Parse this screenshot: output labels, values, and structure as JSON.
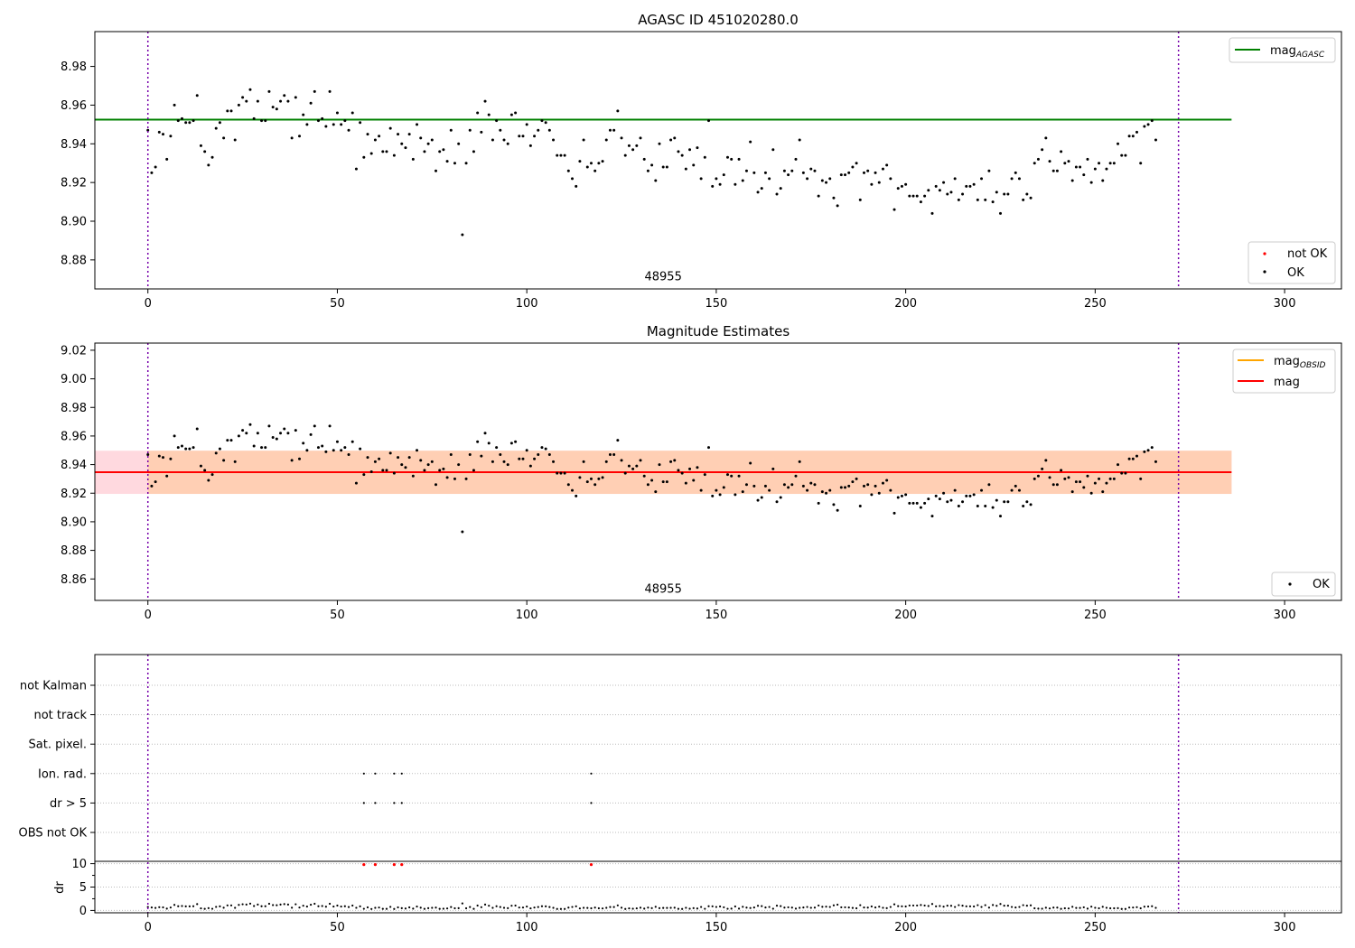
{
  "colors": {
    "agasc_line": "#008000",
    "obsid_line": "#ffa500",
    "mean_line": "#ff0000",
    "band_obsid": "#ffcfb4",
    "band_mean": "#ffd9df",
    "ok_point": "#000000",
    "notok_point": "#ff0000",
    "obs_boundary": "#7700aa",
    "grid": "#bbbbbb"
  },
  "chart_data": [
    {
      "type": "scatter",
      "title": "AGASC ID 451020280.0",
      "xlim": [
        -14,
        315
      ],
      "ylim": [
        8.865,
        8.998
      ],
      "xticks": [
        0,
        50,
        100,
        150,
        200,
        250,
        300
      ],
      "yticks": [
        8.88,
        8.9,
        8.92,
        8.94,
        8.96,
        8.98
      ],
      "ytick_labels": [
        "8.88",
        "8.90",
        "8.92",
        "8.94",
        "8.96",
        "8.98"
      ],
      "reference_lines": [
        {
          "name": "mag_AGASC",
          "legend_base": "mag",
          "legend_sub": "AGASC",
          "y": 8.9525,
          "x_range": [
            -14,
            286
          ],
          "color": "agasc_line"
        }
      ],
      "obs_boundaries": [
        0,
        272
      ],
      "obsid_annotation": {
        "text": "48955",
        "x": 136,
        "y": 8.8695
      },
      "series_legend": [
        {
          "name": "not OK",
          "marker": "notok_point"
        },
        {
          "name": "OK",
          "marker": "ok_point"
        }
      ],
      "legend_placement": [
        "top-right",
        "bottom-right"
      ]
    },
    {
      "type": "scatter",
      "title": "Magnitude Estimates",
      "xlim": [
        -14,
        315
      ],
      "ylim": [
        8.845,
        9.025
      ],
      "xticks": [
        0,
        50,
        100,
        150,
        200,
        250,
        300
      ],
      "yticks": [
        8.86,
        8.88,
        8.9,
        8.92,
        8.94,
        8.96,
        8.98,
        9.0,
        9.02
      ],
      "ytick_labels": [
        "8.86",
        "8.88",
        "8.90",
        "8.92",
        "8.94",
        "8.96",
        "8.98",
        "9.00",
        "9.02"
      ],
      "reference_lines": [
        {
          "name": "mag_OBSID",
          "legend_base": "mag",
          "legend_sub": "OBSID",
          "y": 8.9347,
          "x_range": [
            0,
            272
          ],
          "color": "obsid_line"
        },
        {
          "name": "mag",
          "legend_base": "mag",
          "legend_sub": "",
          "y": 8.9347,
          "x_range": [
            -14,
            286
          ],
          "color": "mean_line"
        }
      ],
      "bands": [
        {
          "y_range": [
            8.9195,
            8.9497
          ],
          "x_range": [
            -14,
            286
          ],
          "color": "band_mean"
        },
        {
          "y_range": [
            8.9195,
            8.9497
          ],
          "x_range": [
            0,
            286
          ],
          "color": "band_obsid"
        }
      ],
      "obs_boundaries": [
        0,
        272
      ],
      "obsid_annotation": {
        "text": "48955",
        "x": 136,
        "y": 8.8505
      },
      "series_legend": [
        {
          "name": "OK",
          "marker": "ok_point"
        }
      ],
      "legend_placement": [
        "top-right",
        "bottom-right"
      ]
    },
    {
      "type": "scatter",
      "title": "",
      "xlim": [
        -14,
        315
      ],
      "xticks": [
        0,
        50,
        100,
        150,
        200,
        250,
        300
      ],
      "flag_rows": [
        "not Kalman",
        "not track",
        "Sat. pixel.",
        "Ion. rad.",
        "dr > 5",
        "OBS not OK"
      ],
      "flag_points": {
        "Ion. rad.": [
          57,
          60,
          65,
          67,
          117
        ],
        "dr > 5": [
          57,
          60,
          65,
          67,
          117
        ]
      },
      "dr_ylabel": "dr",
      "dr_ylim": [
        -0.5,
        10.5
      ],
      "dr_yticks": [
        0,
        5,
        10
      ],
      "dr_ytick_labels": [
        "0",
        "5",
        "10"
      ],
      "dr_outliers": [
        {
          "x": 57,
          "y": 9.8
        },
        {
          "x": 60,
          "y": 9.8
        },
        {
          "x": 65,
          "y": 9.8
        },
        {
          "x": 67,
          "y": 9.8
        },
        {
          "x": 117,
          "y": 9.8
        }
      ],
      "obs_boundaries": [
        0,
        272
      ]
    }
  ],
  "mag_points": [
    [
      0,
      8.947
    ],
    [
      1,
      8.925
    ],
    [
      2,
      8.928
    ],
    [
      3,
      8.946
    ],
    [
      4,
      8.945
    ],
    [
      5,
      8.932
    ],
    [
      6,
      8.944
    ],
    [
      7,
      8.96
    ],
    [
      8,
      8.952
    ],
    [
      9,
      8.953
    ],
    [
      10,
      8.951
    ],
    [
      11,
      8.951
    ],
    [
      12,
      8.952
    ],
    [
      13,
      8.965
    ],
    [
      14,
      8.939
    ],
    [
      15,
      8.936
    ],
    [
      16,
      8.929
    ],
    [
      17,
      8.933
    ],
    [
      18,
      8.948
    ],
    [
      19,
      8.951
    ],
    [
      20,
      8.943
    ],
    [
      21,
      8.957
    ],
    [
      22,
      8.957
    ],
    [
      23,
      8.942
    ],
    [
      24,
      8.96
    ],
    [
      25,
      8.964
    ],
    [
      26,
      8.962
    ],
    [
      27,
      8.968
    ],
    [
      28,
      8.953
    ],
    [
      29,
      8.962
    ],
    [
      30,
      8.952
    ],
    [
      31,
      8.952
    ],
    [
      32,
      8.967
    ],
    [
      33,
      8.959
    ],
    [
      34,
      8.958
    ],
    [
      35,
      8.962
    ],
    [
      36,
      8.965
    ],
    [
      37,
      8.962
    ],
    [
      38,
      8.943
    ],
    [
      39,
      8.964
    ],
    [
      40,
      8.944
    ],
    [
      41,
      8.955
    ],
    [
      42,
      8.95
    ],
    [
      43,
      8.961
    ],
    [
      44,
      8.967
    ],
    [
      45,
      8.952
    ],
    [
      46,
      8.953
    ],
    [
      47,
      8.949
    ],
    [
      48,
      8.967
    ],
    [
      49,
      8.95
    ],
    [
      50,
      8.956
    ],
    [
      51,
      8.95
    ],
    [
      52,
      8.952
    ],
    [
      53,
      8.947
    ],
    [
      54,
      8.956
    ],
    [
      55,
      8.927
    ],
    [
      56,
      8.951
    ],
    [
      57,
      8.933
    ],
    [
      58,
      8.945
    ],
    [
      59,
      8.935
    ],
    [
      60,
      8.942
    ],
    [
      61,
      8.944
    ],
    [
      62,
      8.936
    ],
    [
      63,
      8.936
    ],
    [
      64,
      8.948
    ],
    [
      65,
      8.934
    ],
    [
      66,
      8.945
    ],
    [
      67,
      8.94
    ],
    [
      68,
      8.938
    ],
    [
      69,
      8.945
    ],
    [
      70,
      8.932
    ],
    [
      71,
      8.95
    ],
    [
      72,
      8.943
    ],
    [
      73,
      8.936
    ],
    [
      74,
      8.94
    ],
    [
      75,
      8.942
    ],
    [
      76,
      8.926
    ],
    [
      77,
      8.936
    ],
    [
      78,
      8.937
    ],
    [
      79,
      8.931
    ],
    [
      80,
      8.947
    ],
    [
      81,
      8.93
    ],
    [
      82,
      8.94
    ],
    [
      83,
      8.893
    ],
    [
      84,
      8.93
    ],
    [
      85,
      8.947
    ],
    [
      86,
      8.936
    ],
    [
      87,
      8.956
    ],
    [
      88,
      8.946
    ],
    [
      89,
      8.962
    ],
    [
      90,
      8.955
    ],
    [
      91,
      8.942
    ],
    [
      92,
      8.952
    ],
    [
      93,
      8.947
    ],
    [
      94,
      8.942
    ],
    [
      95,
      8.94
    ],
    [
      96,
      8.955
    ],
    [
      97,
      8.956
    ],
    [
      98,
      8.944
    ],
    [
      99,
      8.944
    ],
    [
      100,
      8.95
    ],
    [
      101,
      8.939
    ],
    [
      102,
      8.944
    ],
    [
      103,
      8.947
    ],
    [
      104,
      8.952
    ],
    [
      105,
      8.951
    ],
    [
      106,
      8.947
    ],
    [
      107,
      8.942
    ],
    [
      108,
      8.934
    ],
    [
      109,
      8.934
    ],
    [
      110,
      8.934
    ],
    [
      111,
      8.926
    ],
    [
      112,
      8.922
    ],
    [
      113,
      8.918
    ],
    [
      114,
      8.931
    ],
    [
      115,
      8.942
    ],
    [
      116,
      8.928
    ],
    [
      117,
      8.93
    ],
    [
      118,
      8.926
    ],
    [
      119,
      8.93
    ],
    [
      120,
      8.931
    ],
    [
      121,
      8.942
    ],
    [
      122,
      8.947
    ],
    [
      123,
      8.947
    ],
    [
      124,
      8.957
    ],
    [
      125,
      8.943
    ],
    [
      126,
      8.934
    ],
    [
      127,
      8.939
    ],
    [
      128,
      8.937
    ],
    [
      129,
      8.939
    ],
    [
      130,
      8.943
    ],
    [
      131,
      8.932
    ],
    [
      132,
      8.926
    ],
    [
      133,
      8.929
    ],
    [
      134,
      8.921
    ],
    [
      135,
      8.94
    ],
    [
      136,
      8.928
    ],
    [
      137,
      8.928
    ],
    [
      138,
      8.942
    ],
    [
      139,
      8.943
    ],
    [
      140,
      8.936
    ],
    [
      141,
      8.934
    ],
    [
      142,
      8.927
    ],
    [
      143,
      8.937
    ],
    [
      144,
      8.929
    ],
    [
      145,
      8.938
    ],
    [
      146,
      8.922
    ],
    [
      147,
      8.933
    ],
    [
      148,
      8.952
    ],
    [
      149,
      8.918
    ],
    [
      150,
      8.922
    ],
    [
      151,
      8.919
    ],
    [
      152,
      8.924
    ],
    [
      153,
      8.933
    ],
    [
      154,
      8.932
    ],
    [
      155,
      8.919
    ],
    [
      156,
      8.932
    ],
    [
      157,
      8.921
    ],
    [
      158,
      8.926
    ],
    [
      159,
      8.941
    ],
    [
      160,
      8.925
    ],
    [
      161,
      8.915
    ],
    [
      162,
      8.917
    ],
    [
      163,
      8.925
    ],
    [
      164,
      8.922
    ],
    [
      165,
      8.937
    ],
    [
      166,
      8.914
    ],
    [
      167,
      8.917
    ],
    [
      168,
      8.926
    ],
    [
      169,
      8.924
    ],
    [
      170,
      8.926
    ],
    [
      171,
      8.932
    ],
    [
      172,
      8.942
    ],
    [
      173,
      8.925
    ],
    [
      174,
      8.922
    ],
    [
      175,
      8.927
    ],
    [
      176,
      8.926
    ],
    [
      177,
      8.913
    ],
    [
      178,
      8.921
    ],
    [
      179,
      8.92
    ],
    [
      180,
      8.922
    ],
    [
      181,
      8.912
    ],
    [
      182,
      8.908
    ],
    [
      183,
      8.924
    ],
    [
      184,
      8.924
    ],
    [
      185,
      8.925
    ],
    [
      186,
      8.928
    ],
    [
      187,
      8.93
    ],
    [
      188,
      8.911
    ],
    [
      189,
      8.925
    ],
    [
      190,
      8.926
    ],
    [
      191,
      8.919
    ],
    [
      192,
      8.925
    ],
    [
      193,
      8.92
    ],
    [
      194,
      8.927
    ],
    [
      195,
      8.929
    ],
    [
      196,
      8.922
    ],
    [
      197,
      8.906
    ],
    [
      198,
      8.917
    ],
    [
      199,
      8.918
    ],
    [
      200,
      8.919
    ],
    [
      201,
      8.913
    ],
    [
      202,
      8.913
    ],
    [
      203,
      8.913
    ],
    [
      204,
      8.91
    ],
    [
      205,
      8.913
    ],
    [
      206,
      8.916
    ],
    [
      207,
      8.904
    ],
    [
      208,
      8.918
    ],
    [
      209,
      8.916
    ],
    [
      210,
      8.92
    ],
    [
      211,
      8.914
    ],
    [
      212,
      8.915
    ],
    [
      213,
      8.922
    ],
    [
      214,
      8.911
    ],
    [
      215,
      8.914
    ],
    [
      216,
      8.918
    ],
    [
      217,
      8.918
    ],
    [
      218,
      8.919
    ],
    [
      219,
      8.911
    ],
    [
      220,
      8.922
    ],
    [
      221,
      8.911
    ],
    [
      222,
      8.926
    ],
    [
      223,
      8.91
    ],
    [
      224,
      8.915
    ],
    [
      225,
      8.904
    ],
    [
      226,
      8.914
    ],
    [
      227,
      8.914
    ],
    [
      228,
      8.922
    ],
    [
      229,
      8.925
    ],
    [
      230,
      8.922
    ],
    [
      231,
      8.911
    ],
    [
      232,
      8.914
    ],
    [
      233,
      8.912
    ],
    [
      234,
      8.93
    ],
    [
      235,
      8.932
    ],
    [
      236,
      8.937
    ],
    [
      237,
      8.943
    ],
    [
      238,
      8.931
    ],
    [
      239,
      8.926
    ],
    [
      240,
      8.926
    ],
    [
      241,
      8.936
    ],
    [
      242,
      8.93
    ],
    [
      243,
      8.931
    ],
    [
      244,
      8.921
    ],
    [
      245,
      8.928
    ],
    [
      246,
      8.928
    ],
    [
      247,
      8.924
    ],
    [
      248,
      8.932
    ],
    [
      249,
      8.92
    ],
    [
      250,
      8.927
    ],
    [
      251,
      8.93
    ],
    [
      252,
      8.921
    ],
    [
      253,
      8.927
    ],
    [
      254,
      8.93
    ],
    [
      255,
      8.93
    ],
    [
      256,
      8.94
    ],
    [
      257,
      8.934
    ],
    [
      258,
      8.934
    ],
    [
      259,
      8.944
    ],
    [
      260,
      8.944
    ],
    [
      261,
      8.946
    ],
    [
      262,
      8.93
    ],
    [
      263,
      8.949
    ],
    [
      264,
      8.95
    ],
    [
      265,
      8.952
    ],
    [
      266,
      8.942
    ]
  ]
}
